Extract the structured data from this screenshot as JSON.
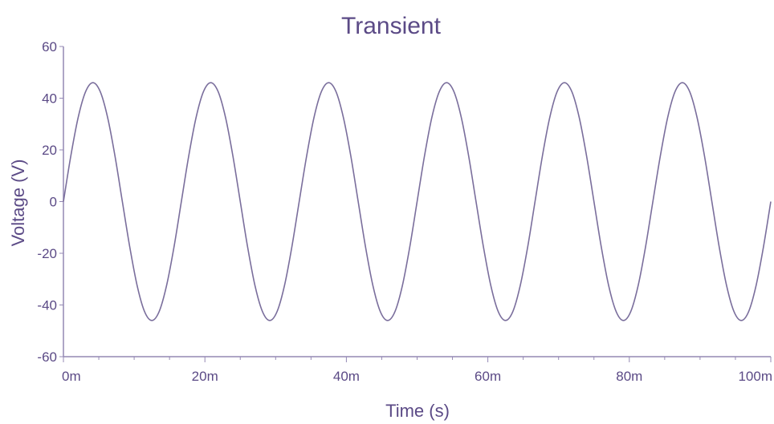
{
  "chart_data": {
    "type": "line",
    "title": "Transient",
    "xlabel": "Time (s)",
    "ylabel": "Voltage (V)",
    "xlim": [
      0,
      0.1
    ],
    "ylim": [
      -60,
      60
    ],
    "x_ticks": [
      {
        "value": 0,
        "label": "0m"
      },
      {
        "value": 0.02,
        "label": "20m"
      },
      {
        "value": 0.04,
        "label": "40m"
      },
      {
        "value": 0.06,
        "label": "60m"
      },
      {
        "value": 0.08,
        "label": "80m"
      },
      {
        "value": 0.1,
        "label": "100m"
      }
    ],
    "y_ticks": [
      {
        "value": 60,
        "label": "60"
      },
      {
        "value": 40,
        "label": "40"
      },
      {
        "value": 20,
        "label": "20"
      },
      {
        "value": 0,
        "label": "0"
      },
      {
        "value": -20,
        "label": "-20"
      },
      {
        "value": -40,
        "label": "-40"
      },
      {
        "value": -60,
        "label": "-60"
      }
    ],
    "grid": false,
    "legend": "none",
    "colors": {
      "line": "#7a6e9c",
      "text": "#5b4a86",
      "axis": "#9488b4"
    },
    "series": [
      {
        "x": [
          0,
          0.00104,
          0.00208,
          0.00313,
          0.00417,
          0.00521,
          0.00625,
          0.00729,
          0.00833,
          0.00938,
          0.01042,
          0.01146,
          0.0125,
          0.01354,
          0.01458,
          0.01563,
          0.01667,
          0.01771,
          0.01875,
          0.01979,
          0.02083,
          0.02188,
          0.02292,
          0.02396,
          0.025,
          0.02604,
          0.02708,
          0.02813,
          0.02917,
          0.03021,
          0.03125,
          0.03229,
          0.03333,
          0.03438,
          0.03542,
          0.03646,
          0.0375,
          0.03854,
          0.03958,
          0.04063,
          0.04167,
          0.04271,
          0.04375,
          0.04479,
          0.04583,
          0.04688,
          0.04792,
          0.04896,
          0.05,
          0.05104,
          0.05208,
          0.05313,
          0.05417,
          0.05521,
          0.05625,
          0.05729,
          0.05833,
          0.05938,
          0.06042,
          0.06146,
          0.0625,
          0.06354,
          0.06458,
          0.06563,
          0.06667,
          0.06771,
          0.06875,
          0.06979,
          0.07083,
          0.07188,
          0.07292,
          0.07396,
          0.075,
          0.07604,
          0.07708,
          0.07813,
          0.07917,
          0.08021,
          0.08125,
          0.08229,
          0.08333,
          0.08438,
          0.08542,
          0.08646,
          0.0875,
          0.08854,
          0.08958,
          0.09063,
          0.09167,
          0.09271,
          0.09375,
          0.09479,
          0.09583,
          0.09688,
          0.09792,
          0.09896,
          0.1
        ],
        "y": [
          0,
          17.6,
          32.5,
          42.5,
          46,
          42.5,
          32.5,
          17.6,
          0,
          -17.6,
          -32.5,
          -42.5,
          -46,
          -42.5,
          -32.5,
          -17.6,
          0,
          17.6,
          32.5,
          42.5,
          46,
          42.5,
          32.5,
          17.6,
          0,
          -17.6,
          -32.5,
          -42.5,
          -46,
          -42.5,
          -32.5,
          -17.6,
          0,
          17.6,
          32.5,
          42.5,
          46,
          42.5,
          32.5,
          17.6,
          0,
          -17.6,
          -32.5,
          -42.5,
          -46,
          -42.5,
          -32.5,
          -17.6,
          0,
          17.6,
          32.5,
          42.5,
          46,
          42.5,
          32.5,
          17.6,
          0,
          -17.6,
          -32.5,
          -42.5,
          -46,
          -42.5,
          -32.5,
          -17.6,
          0,
          17.6,
          32.5,
          42.5,
          46,
          42.5,
          32.5,
          17.6,
          0,
          -17.6,
          -32.5,
          -42.5,
          -46,
          -42.5,
          -32.5,
          -17.6,
          0,
          17.6,
          32.5,
          42.5,
          46,
          42.5,
          32.5,
          17.6,
          0,
          -17.6,
          -32.5,
          -42.5,
          -46,
          -42.5,
          -32.5,
          -17.6,
          0
        ]
      }
    ]
  }
}
